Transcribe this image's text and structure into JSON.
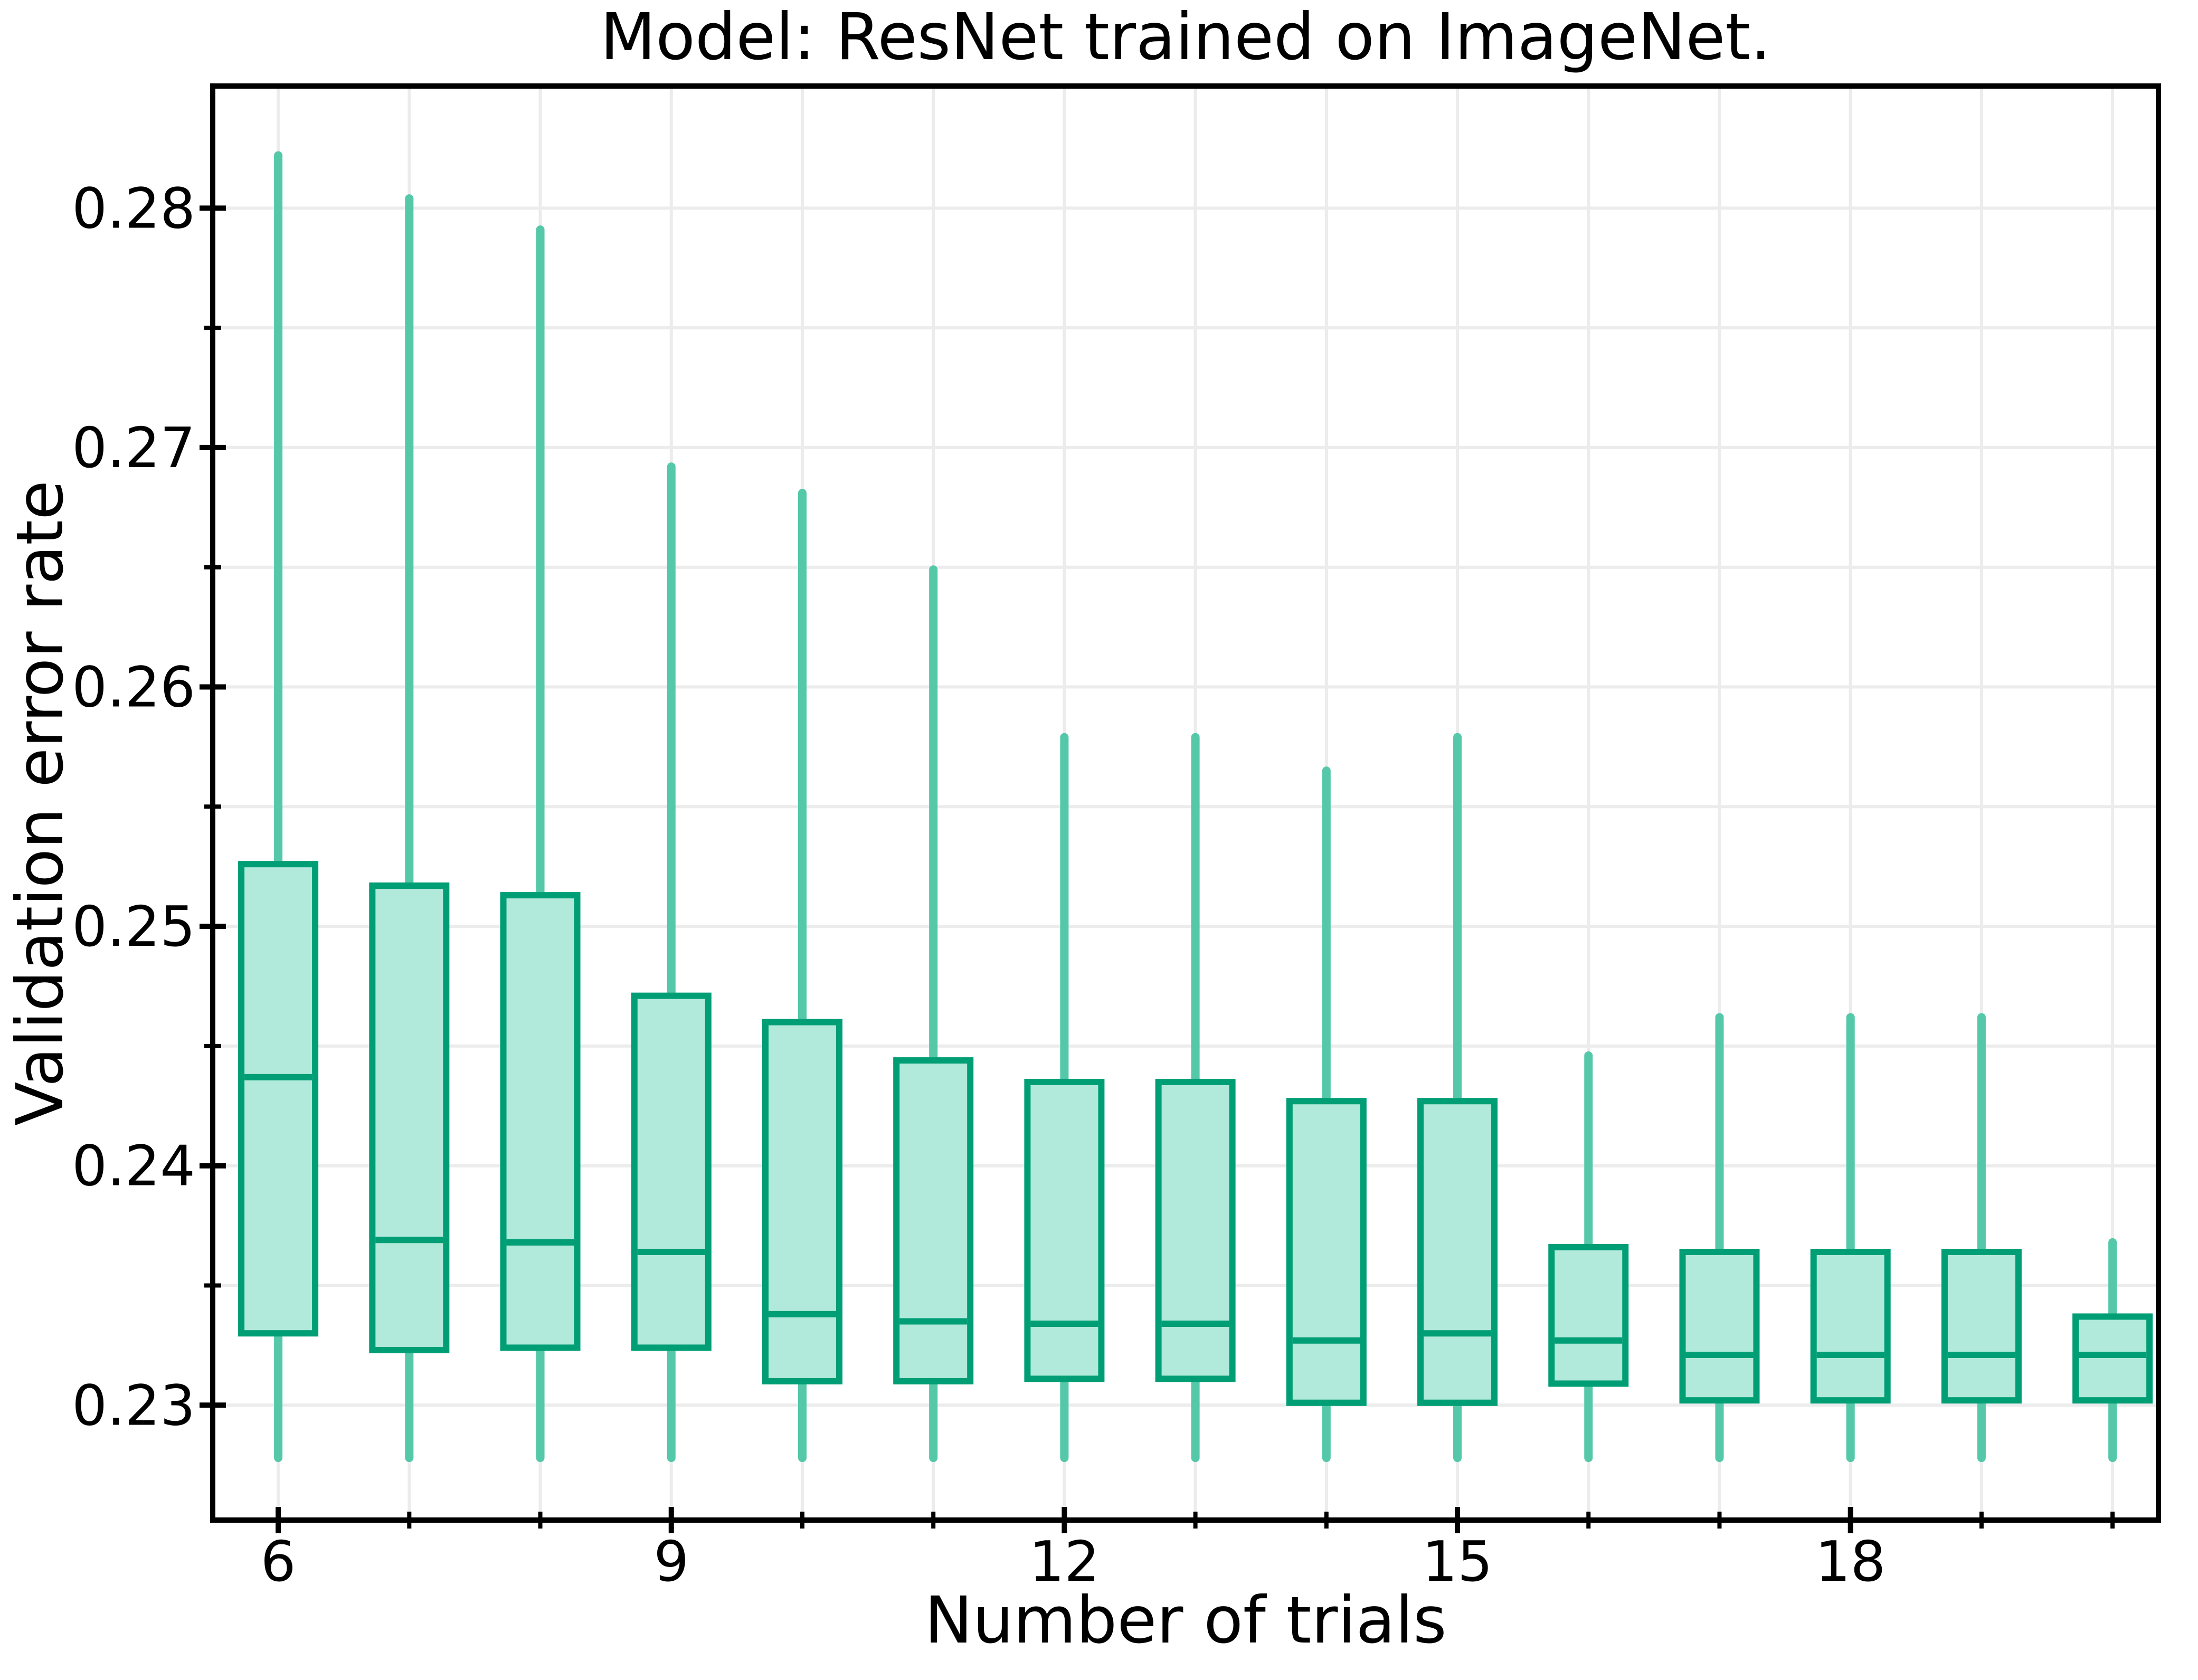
{
  "figure": {
    "title": "Model: ResNet trained on ImageNet."
  },
  "chart_data": {
    "type": "boxplot",
    "title": "Model: ResNet trained on ImageNet.",
    "xlabel": "Number of trials",
    "ylabel": "Validation error rate",
    "xlim": [
      5.5,
      20.35
    ],
    "ylim": [
      0.2252,
      0.2851
    ],
    "x_major_ticks": [
      6,
      9,
      12,
      15,
      18
    ],
    "x_major_tick_labels": [
      "6",
      "9",
      "12",
      "15",
      "18"
    ],
    "x_minor_ticks": [
      7,
      8,
      10,
      11,
      13,
      14,
      16,
      17,
      19,
      20
    ],
    "y_major_ticks": [
      0.23,
      0.24,
      0.25,
      0.26,
      0.27,
      0.28
    ],
    "y_major_tick_labels": [
      "0.23",
      "0.24",
      "0.25",
      "0.26",
      "0.27",
      "0.28"
    ],
    "y_minor_ticks": [
      0.235,
      0.245,
      0.255,
      0.265,
      0.275
    ],
    "grid": {
      "vertical": "every trial (6-20)",
      "horizontal": "every 0.005",
      "visible": true
    },
    "legend": null,
    "boxes": [
      {
        "x": 6,
        "whisker_low": 0.2278,
        "q1": 0.233,
        "median": 0.2437,
        "q3": 0.2526,
        "whisker_high": 0.2822
      },
      {
        "x": 7,
        "whisker_low": 0.2278,
        "q1": 0.2323,
        "median": 0.2369,
        "q3": 0.2517,
        "whisker_high": 0.2804
      },
      {
        "x": 8,
        "whisker_low": 0.2278,
        "q1": 0.2324,
        "median": 0.2368,
        "q3": 0.2513,
        "whisker_high": 0.2791
      },
      {
        "x": 9,
        "whisker_low": 0.2278,
        "q1": 0.2324,
        "median": 0.2364,
        "q3": 0.2471,
        "whisker_high": 0.2692
      },
      {
        "x": 10,
        "whisker_low": 0.2278,
        "q1": 0.231,
        "median": 0.2338,
        "q3": 0.246,
        "whisker_high": 0.2681
      },
      {
        "x": 11,
        "whisker_low": 0.2278,
        "q1": 0.231,
        "median": 0.2335,
        "q3": 0.2444,
        "whisker_high": 0.2649
      },
      {
        "x": 12,
        "whisker_low": 0.2278,
        "q1": 0.2311,
        "median": 0.2334,
        "q3": 0.2435,
        "whisker_high": 0.2579
      },
      {
        "x": 13,
        "whisker_low": 0.2278,
        "q1": 0.2311,
        "median": 0.2334,
        "q3": 0.2435,
        "whisker_high": 0.2579
      },
      {
        "x": 14,
        "whisker_low": 0.2278,
        "q1": 0.2301,
        "median": 0.2327,
        "q3": 0.2427,
        "whisker_high": 0.2565
      },
      {
        "x": 15,
        "whisker_low": 0.2278,
        "q1": 0.2301,
        "median": 0.233,
        "q3": 0.2427,
        "whisker_high": 0.2579
      },
      {
        "x": 16,
        "whisker_low": 0.2278,
        "q1": 0.2309,
        "median": 0.2327,
        "q3": 0.2366,
        "whisker_high": 0.2446
      },
      {
        "x": 17,
        "whisker_low": 0.2278,
        "q1": 0.2302,
        "median": 0.2321,
        "q3": 0.2364,
        "whisker_high": 0.2462
      },
      {
        "x": 18,
        "whisker_low": 0.2278,
        "q1": 0.2302,
        "median": 0.2321,
        "q3": 0.2364,
        "whisker_high": 0.2462
      },
      {
        "x": 19,
        "whisker_low": 0.2278,
        "q1": 0.2302,
        "median": 0.2321,
        "q3": 0.2364,
        "whisker_high": 0.2462
      },
      {
        "x": 20,
        "whisker_low": 0.2278,
        "q1": 0.2302,
        "median": 0.2321,
        "q3": 0.2337,
        "whisker_high": 0.2368
      }
    ]
  },
  "style": {
    "box_fill": "#b1e9da",
    "box_edge": "#009e75",
    "whisker_color": "#54c8a8",
    "median_color": "#009e75",
    "grid_color": "#ececec",
    "spine_color": "#000000",
    "text_color": "#000000",
    "background": "#ffffff"
  }
}
